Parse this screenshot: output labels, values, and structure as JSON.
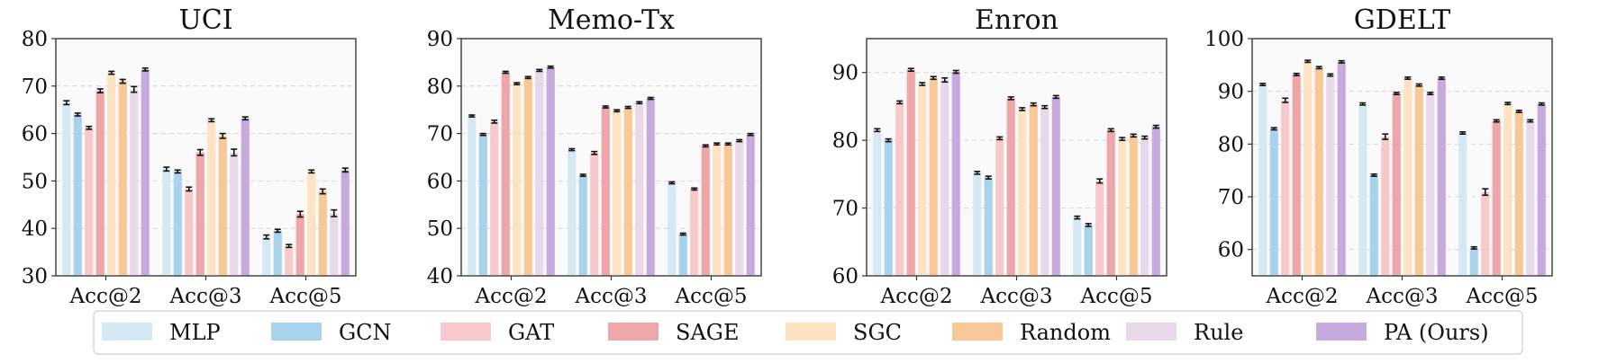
{
  "chart_data": {
    "type": "bar",
    "series_names": [
      "MLP",
      "GCN",
      "GAT",
      "SAGE",
      "SGC",
      "Random",
      "Rule",
      "PA (Ours)"
    ],
    "series_colors": [
      "#d6e8f3",
      "#a9d2ec",
      "#f8c9cb",
      "#eea6a9",
      "#fde3c1",
      "#f8c896",
      "#e8d8ea",
      "#c6aadd"
    ],
    "categories": [
      "Acc@2",
      "Acc@3",
      "Acc@5"
    ],
    "panels": [
      {
        "title": "UCI",
        "ylim": [
          30,
          80
        ],
        "yticks": [
          "30",
          "40",
          "50",
          "60",
          "70",
          "80"
        ],
        "series": [
          {
            "name": "MLP",
            "values": [
              66.5,
              52.5,
              38.2
            ],
            "errors": [
              0.4,
              0.4,
              0.4
            ]
          },
          {
            "name": "GCN",
            "values": [
              64.0,
              52.0,
              39.5
            ],
            "errors": [
              0.3,
              0.3,
              0.3
            ]
          },
          {
            "name": "GAT",
            "values": [
              61.2,
              48.3,
              36.3
            ],
            "errors": [
              0.3,
              0.4,
              0.3
            ]
          },
          {
            "name": "SAGE",
            "values": [
              69.0,
              56.0,
              43.0
            ],
            "errors": [
              0.4,
              0.6,
              0.6
            ]
          },
          {
            "name": "SGC",
            "values": [
              72.8,
              62.8,
              52.0
            ],
            "errors": [
              0.3,
              0.3,
              0.3
            ]
          },
          {
            "name": "Random",
            "values": [
              71.0,
              59.5,
              47.8
            ],
            "errors": [
              0.4,
              0.5,
              0.5
            ]
          },
          {
            "name": "Rule",
            "values": [
              69.3,
              56.0,
              43.2
            ],
            "errors": [
              0.6,
              0.7,
              0.7
            ]
          },
          {
            "name": "PA (Ours)",
            "values": [
              73.5,
              63.2,
              52.3
            ],
            "errors": [
              0.3,
              0.3,
              0.4
            ]
          }
        ]
      },
      {
        "title": "Memo-Tx",
        "ylim": [
          40,
          90
        ],
        "yticks": [
          "40",
          "50",
          "60",
          "70",
          "80",
          "90"
        ],
        "series": [
          {
            "name": "MLP",
            "values": [
              73.7,
              66.6,
              59.6
            ],
            "errors": [
              0.2,
              0.2,
              0.2
            ]
          },
          {
            "name": "GCN",
            "values": [
              69.8,
              61.2,
              48.8
            ],
            "errors": [
              0.2,
              0.2,
              0.2
            ]
          },
          {
            "name": "GAT",
            "values": [
              72.5,
              65.9,
              58.3
            ],
            "errors": [
              0.3,
              0.3,
              0.2
            ]
          },
          {
            "name": "SAGE",
            "values": [
              82.9,
              75.6,
              67.4
            ],
            "errors": [
              0.2,
              0.2,
              0.2
            ]
          },
          {
            "name": "SGC",
            "values": [
              80.5,
              74.8,
              67.8
            ],
            "errors": [
              0.2,
              0.2,
              0.2
            ]
          },
          {
            "name": "Random",
            "values": [
              81.8,
              75.5,
              67.8
            ],
            "errors": [
              0.2,
              0.2,
              0.2
            ]
          },
          {
            "name": "Rule",
            "values": [
              83.3,
              76.5,
              68.5
            ],
            "errors": [
              0.2,
              0.2,
              0.2
            ]
          },
          {
            "name": "PA (Ours)",
            "values": [
              84.0,
              77.4,
              69.8
            ],
            "errors": [
              0.2,
              0.2,
              0.2
            ]
          }
        ]
      },
      {
        "title": "Enron",
        "ylim": [
          60,
          95
        ],
        "yticks": [
          "60",
          "70",
          "80",
          "90"
        ],
        "series": [
          {
            "name": "MLP",
            "values": [
              81.5,
              75.2,
              68.6
            ],
            "errors": [
              0.2,
              0.2,
              0.2
            ]
          },
          {
            "name": "GCN",
            "values": [
              80.0,
              74.5,
              67.5
            ],
            "errors": [
              0.2,
              0.2,
              0.2
            ]
          },
          {
            "name": "GAT",
            "values": [
              85.6,
              80.3,
              74.0
            ],
            "errors": [
              0.2,
              0.2,
              0.3
            ]
          },
          {
            "name": "SAGE",
            "values": [
              90.4,
              86.2,
              81.5
            ],
            "errors": [
              0.2,
              0.2,
              0.2
            ]
          },
          {
            "name": "SGC",
            "values": [
              88.3,
              84.6,
              80.2
            ],
            "errors": [
              0.2,
              0.2,
              0.2
            ]
          },
          {
            "name": "Random",
            "values": [
              89.2,
              85.3,
              80.7
            ],
            "errors": [
              0.2,
              0.2,
              0.2
            ]
          },
          {
            "name": "Rule",
            "values": [
              88.9,
              84.9,
              80.4
            ],
            "errors": [
              0.3,
              0.2,
              0.2
            ]
          },
          {
            "name": "PA (Ours)",
            "values": [
              90.1,
              86.4,
              82.0
            ],
            "errors": [
              0.2,
              0.2,
              0.2
            ]
          }
        ]
      },
      {
        "title": "GDELT",
        "ylim": [
          55,
          100
        ],
        "yticks": [
          "60",
          "70",
          "80",
          "90",
          "100"
        ],
        "series": [
          {
            "name": "MLP",
            "values": [
              91.3,
              87.6,
              82.1
            ],
            "errors": [
              0.2,
              0.2,
              0.2
            ]
          },
          {
            "name": "GCN",
            "values": [
              82.9,
              74.1,
              60.3
            ],
            "errors": [
              0.2,
              0.2,
              0.2
            ]
          },
          {
            "name": "GAT",
            "values": [
              88.3,
              81.4,
              70.9
            ],
            "errors": [
              0.4,
              0.5,
              0.6
            ]
          },
          {
            "name": "SAGE",
            "values": [
              93.2,
              89.6,
              84.4
            ],
            "errors": [
              0.2,
              0.2,
              0.2
            ]
          },
          {
            "name": "SGC",
            "values": [
              95.7,
              92.5,
              87.7
            ],
            "errors": [
              0.2,
              0.2,
              0.2
            ]
          },
          {
            "name": "Random",
            "values": [
              94.5,
              91.2,
              86.2
            ],
            "errors": [
              0.2,
              0.2,
              0.2
            ]
          },
          {
            "name": "Rule",
            "values": [
              93.1,
              89.6,
              84.4
            ],
            "errors": [
              0.2,
              0.2,
              0.2
            ]
          },
          {
            "name": "PA (Ours)",
            "values": [
              95.6,
              92.5,
              87.6
            ],
            "errors": [
              0.2,
              0.2,
              0.2
            ]
          }
        ]
      }
    ],
    "legend": {
      "position": "bottom",
      "entries": [
        "MLP",
        "GCN",
        "GAT",
        "SAGE",
        "SGC",
        "Random",
        "Rule",
        "PA (Ours)"
      ]
    },
    "grid": true
  }
}
